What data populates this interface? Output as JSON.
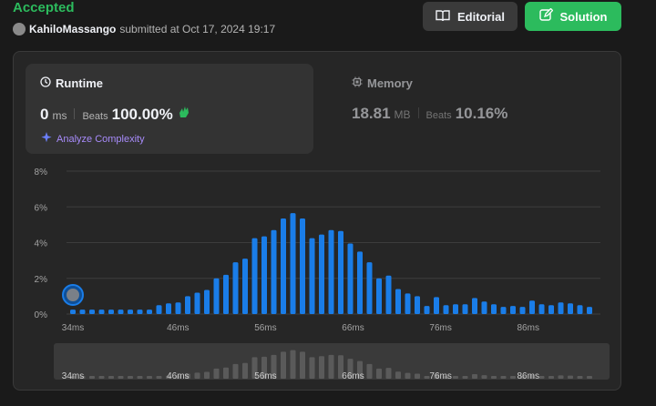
{
  "header": {
    "status": "Accepted",
    "username": "KahiloMassango",
    "submitted_text": "submitted at Oct 17, 2024 19:17",
    "editorial_label": "Editorial",
    "solution_label": "Solution"
  },
  "runtime": {
    "title": "Runtime",
    "value": "0",
    "unit": "ms",
    "beats_label": "Beats",
    "beats_value": "100.00%",
    "analyze_label": "Analyze Complexity"
  },
  "memory": {
    "title": "Memory",
    "value": "18.81",
    "unit": "MB",
    "beats_label": "Beats",
    "beats_value": "10.16%"
  },
  "colors": {
    "accent_green": "#2cbb5d",
    "bar_blue": "#1a7de8",
    "bar_gray": "#5a5a5a"
  },
  "chart_data": {
    "type": "bar",
    "y_tick_labels": [
      "0%",
      "2%",
      "4%",
      "6%",
      "8%"
    ],
    "ylim": [
      0,
      8
    ],
    "x_tick_labels": [
      "34ms",
      "46ms",
      "56ms",
      "66ms",
      "76ms",
      "86ms"
    ],
    "x_start_ms": 34,
    "x_end_ms": 93,
    "series": [
      {
        "values": [
          0.25,
          0.25,
          0.25,
          0.25,
          0.25,
          0.25,
          0.25,
          0.25,
          0.25,
          0.5,
          0.6,
          0.65,
          1.0,
          1.2,
          1.35,
          2.0,
          2.2,
          2.9,
          3.1,
          4.25,
          4.35,
          4.7,
          5.35,
          5.65,
          5.35,
          4.25,
          4.45,
          4.7,
          4.65,
          3.95,
          3.5,
          2.9,
          2.0,
          2.15,
          1.4,
          1.15,
          1.0,
          0.45,
          0.95,
          0.5,
          0.55,
          0.55,
          0.9,
          0.7,
          0.55,
          0.4,
          0.45,
          0.4,
          0.75,
          0.55,
          0.5,
          0.65,
          0.6,
          0.5,
          0.4
        ]
      }
    ],
    "grid": true,
    "has_range_selector": true
  }
}
